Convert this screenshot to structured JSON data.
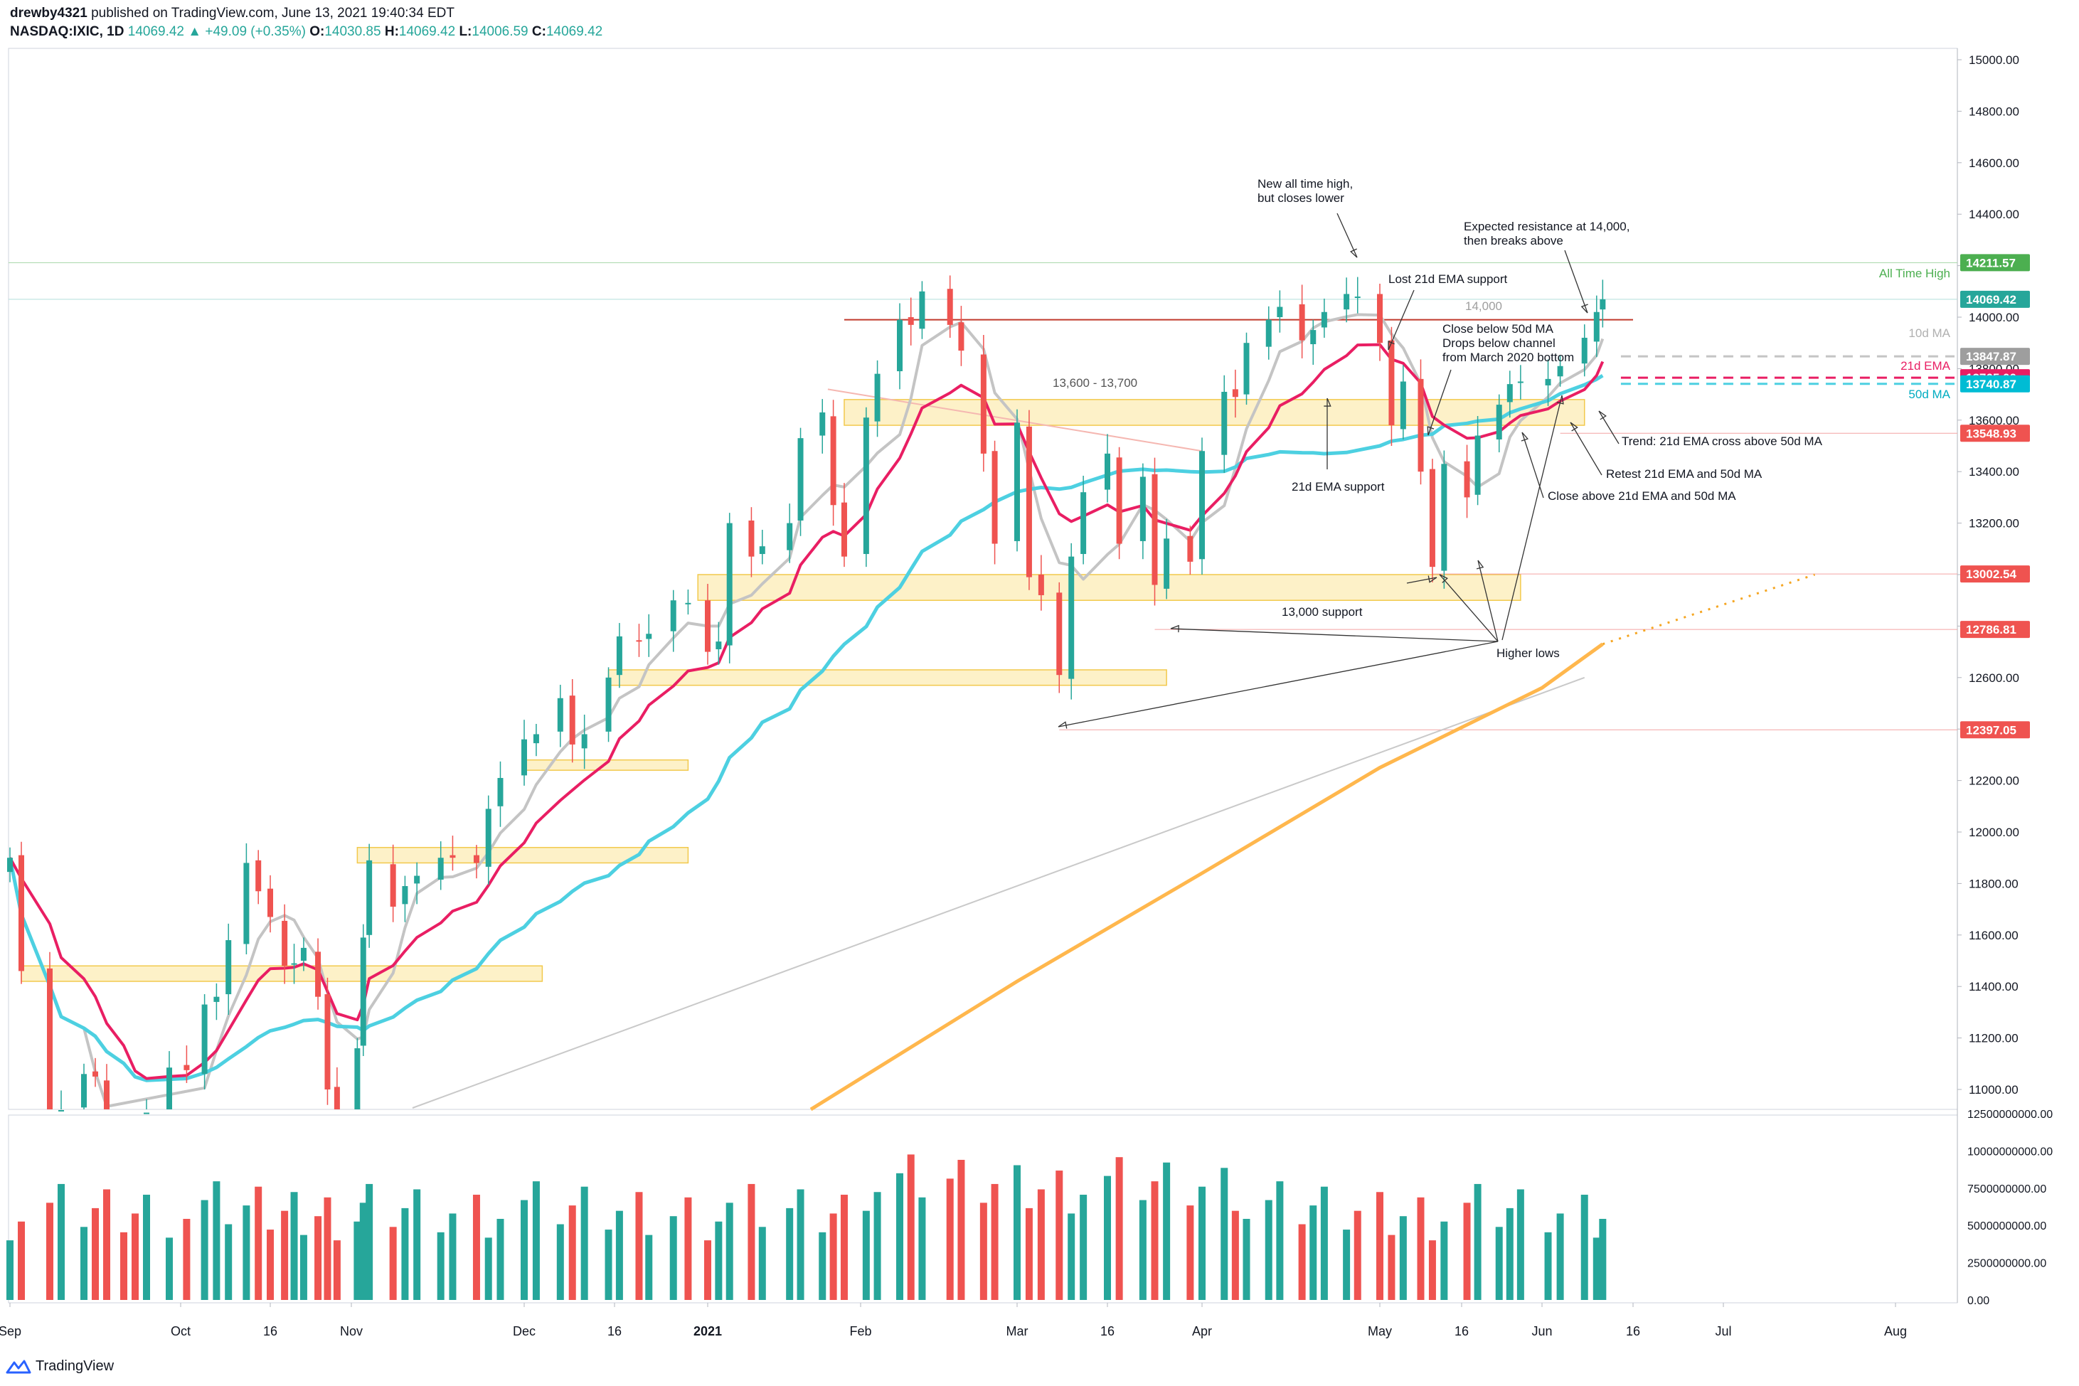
{
  "header": {
    "publisher": "drewby4321",
    "published_text": "published on TradingView.com, June 13, 2021 19:40:34 EDT",
    "symbol": "NASDAQ:IXIC, 1D",
    "last": "14069.42",
    "change": "▲ +49.09 (+0.35%)",
    "o_label": "O:",
    "o": "14030.85",
    "h_label": "H:",
    "h": "14069.42",
    "l_label": "L:",
    "l": "14006.59",
    "c_label": "C:",
    "c": "14069.42"
  },
  "footer": {
    "brand": "TradingView",
    "logo_icon": "tradingview-logo-icon"
  },
  "colors": {
    "up": "#26a69a",
    "down": "#ef5350",
    "ema21": "#e91e63",
    "ma50": "#4dd0e1",
    "ma10": "#c4c4c4",
    "ma200": "#ffb74d",
    "zone": "#fbe59a",
    "ath": "#4caf50"
  },
  "chart_data": {
    "type": "candlestick",
    "price_axis": {
      "ticks": [
        "15000.00",
        "14800.00",
        "14600.00",
        "14400.00",
        "14200.00",
        "14000.00",
        "13800.00",
        "13600.00",
        "13400.00",
        "13200.00",
        "13000.00",
        "12800.00",
        "12600.00",
        "12400.00",
        "12200.00",
        "12000.00",
        "11800.00",
        "11600.00",
        "11400.00",
        "11200.00",
        "11000.00"
      ],
      "range": [
        10920,
        15060
      ]
    },
    "volume_axis": {
      "ticks": [
        "12500000000.00",
        "10000000000.00",
        "7500000000.00",
        "5000000000.00",
        "2500000000.00",
        "0.00"
      ],
      "range": [
        0,
        12500000000
      ]
    },
    "time_axis": {
      "ticks": [
        {
          "label": "Sep",
          "date": "2020-09-01"
        },
        {
          "label": "Oct",
          "date": "2020-10-01"
        },
        {
          "label": "16",
          "date": "2020-10-16"
        },
        {
          "label": "Nov",
          "date": "2020-11-02"
        },
        {
          "label": "Dec",
          "date": "2020-12-01"
        },
        {
          "label": "16",
          "date": "2020-12-16"
        },
        {
          "label": "2021",
          "date": "2021-01-04",
          "bold": true
        },
        {
          "label": "Feb",
          "date": "2021-02-01"
        },
        {
          "label": "Mar",
          "date": "2021-03-01"
        },
        {
          "label": "16",
          "date": "2021-03-16"
        },
        {
          "label": "Apr",
          "date": "2021-04-01"
        },
        {
          "label": "May",
          "date": "2021-05-03"
        },
        {
          "label": "16",
          "date": "2021-05-17"
        },
        {
          "label": "Jun",
          "date": "2021-06-01"
        },
        {
          "label": "16",
          "date": "2021-06-16"
        },
        {
          "label": "Jul",
          "date": "2021-07-01"
        },
        {
          "label": "Aug",
          "date": "2021-08-02"
        }
      ]
    },
    "closes": [
      {
        "date": "2020-09-01",
        "close": 11900
      },
      {
        "date": "2020-09-03",
        "close": 11460
      },
      {
        "date": "2020-09-08",
        "close": 10850
      },
      {
        "date": "2020-09-10",
        "close": 10920
      },
      {
        "date": "2020-09-14",
        "close": 11060
      },
      {
        "date": "2020-09-16",
        "close": 11050
      },
      {
        "date": "2020-09-18",
        "close": 10790
      },
      {
        "date": "2020-09-21",
        "close": 10780
      },
      {
        "date": "2020-09-23",
        "close": 10630
      },
      {
        "date": "2020-09-25",
        "close": 10910
      },
      {
        "date": "2020-09-29",
        "close": 11085
      },
      {
        "date": "2020-10-02",
        "close": 11075
      },
      {
        "date": "2020-10-05",
        "close": 11330
      },
      {
        "date": "2020-10-07",
        "close": 11360
      },
      {
        "date": "2020-10-09",
        "close": 11580
      },
      {
        "date": "2020-10-12",
        "close": 11880
      },
      {
        "date": "2020-10-14",
        "close": 11770
      },
      {
        "date": "2020-10-16",
        "close": 11670
      },
      {
        "date": "2020-10-19",
        "close": 11480
      },
      {
        "date": "2020-10-21",
        "close": 11490
      },
      {
        "date": "2020-10-23",
        "close": 11550
      },
      {
        "date": "2020-10-26",
        "close": 11360
      },
      {
        "date": "2020-10-28",
        "close": 11000
      },
      {
        "date": "2020-10-30",
        "close": 10910
      },
      {
        "date": "2020-11-03",
        "close": 11160
      },
      {
        "date": "2020-11-04",
        "close": 11590
      },
      {
        "date": "2020-11-05",
        "close": 11890
      },
      {
        "date": "2020-11-09",
        "close": 11710
      },
      {
        "date": "2020-11-11",
        "close": 11790
      },
      {
        "date": "2020-11-13",
        "close": 11830
      },
      {
        "date": "2020-11-17",
        "close": 11900
      },
      {
        "date": "2020-11-19",
        "close": 11900
      },
      {
        "date": "2020-11-23",
        "close": 11880
      },
      {
        "date": "2020-11-25",
        "close": 12090
      },
      {
        "date": "2020-11-27",
        "close": 12210
      },
      {
        "date": "2020-12-01",
        "close": 12360
      },
      {
        "date": "2020-12-03",
        "close": 12380
      },
      {
        "date": "2020-12-07",
        "close": 12520
      },
      {
        "date": "2020-12-09",
        "close": 12340
      },
      {
        "date": "2020-12-11",
        "close": 12380
      },
      {
        "date": "2020-12-15",
        "close": 12600
      },
      {
        "date": "2020-12-17",
        "close": 12760
      },
      {
        "date": "2020-12-21",
        "close": 12740
      },
      {
        "date": "2020-12-23",
        "close": 12770
      },
      {
        "date": "2020-12-28",
        "close": 12900
      },
      {
        "date": "2020-12-31",
        "close": 12890
      },
      {
        "date": "2021-01-04",
        "close": 12700
      },
      {
        "date": "2021-01-06",
        "close": 12740
      },
      {
        "date": "2021-01-08",
        "close": 13200
      },
      {
        "date": "2021-01-12",
        "close": 13070
      },
      {
        "date": "2021-01-14",
        "close": 13110
      },
      {
        "date": "2021-01-19",
        "close": 13200
      },
      {
        "date": "2021-01-21",
        "close": 13530
      },
      {
        "date": "2021-01-25",
        "close": 13630
      },
      {
        "date": "2021-01-27",
        "close": 13270
      },
      {
        "date": "2021-01-29",
        "close": 13070
      },
      {
        "date": "2021-02-02",
        "close": 13610
      },
      {
        "date": "2021-02-04",
        "close": 13780
      },
      {
        "date": "2021-02-08",
        "close": 13990
      },
      {
        "date": "2021-02-10",
        "close": 13970
      },
      {
        "date": "2021-02-12",
        "close": 14100
      },
      {
        "date": "2021-02-17",
        "close": 13970
      },
      {
        "date": "2021-02-19",
        "close": 13870
      },
      {
        "date": "2021-02-23",
        "close": 13470
      },
      {
        "date": "2021-02-25",
        "close": 13120
      },
      {
        "date": "2021-03-01",
        "close": 13590
      },
      {
        "date": "2021-03-03",
        "close": 12990
      },
      {
        "date": "2021-03-05",
        "close": 12920
      },
      {
        "date": "2021-03-08",
        "close": 12610
      },
      {
        "date": "2021-03-10",
        "close": 13070
      },
      {
        "date": "2021-03-12",
        "close": 13320
      },
      {
        "date": "2021-03-16",
        "close": 13470
      },
      {
        "date": "2021-03-18",
        "close": 13120
      },
      {
        "date": "2021-03-22",
        "close": 13380
      },
      {
        "date": "2021-03-24",
        "close": 12960
      },
      {
        "date": "2021-03-26",
        "close": 13140
      },
      {
        "date": "2021-03-30",
        "close": 13050
      },
      {
        "date": "2021-04-01",
        "close": 13480
      },
      {
        "date": "2021-04-05",
        "close": 13710
      },
      {
        "date": "2021-04-07",
        "close": 13690
      },
      {
        "date": "2021-04-09",
        "close": 13900
      },
      {
        "date": "2021-04-13",
        "close": 13990
      },
      {
        "date": "2021-04-15",
        "close": 14040
      },
      {
        "date": "2021-04-19",
        "close": 13910
      },
      {
        "date": "2021-04-21",
        "close": 13950
      },
      {
        "date": "2021-04-23",
        "close": 14020
      },
      {
        "date": "2021-04-27",
        "close": 14090
      },
      {
        "date": "2021-04-29",
        "close": 14080
      },
      {
        "date": "2021-05-03",
        "close": 13900
      },
      {
        "date": "2021-05-05",
        "close": 13580
      },
      {
        "date": "2021-05-07",
        "close": 13750
      },
      {
        "date": "2021-05-10",
        "close": 13400
      },
      {
        "date": "2021-05-12",
        "close": 13030
      },
      {
        "date": "2021-05-14",
        "close": 13430
      },
      {
        "date": "2021-05-18",
        "close": 13300
      },
      {
        "date": "2021-05-20",
        "close": 13540
      },
      {
        "date": "2021-05-24",
        "close": 13660
      },
      {
        "date": "2021-05-26",
        "close": 13740
      },
      {
        "date": "2021-05-28",
        "close": 13750
      },
      {
        "date": "2021-06-02",
        "close": 13760
      },
      {
        "date": "2021-06-04",
        "close": 13810
      },
      {
        "date": "2021-06-08",
        "close": 13920
      },
      {
        "date": "2021-06-10",
        "close": 14020
      },
      {
        "date": "2021-06-11",
        "close": 14069.42
      }
    ],
    "indicators": [
      {
        "name": "10d MA",
        "last": "13847.87",
        "color": "#c4c4c4"
      },
      {
        "name": "21d EMA",
        "last": "13765.00",
        "color": "#e91e63"
      },
      {
        "name": "50d MA",
        "last": "13740.87",
        "color": "#4dd0e1"
      }
    ],
    "price_labels": [
      {
        "value": "14211.57",
        "color": "#4caf50",
        "note": "All Time High"
      },
      {
        "value": "14069.42",
        "color": "#26a69a"
      },
      {
        "value": "13847.87",
        "color": "#9e9e9e"
      },
      {
        "value": "13765.00",
        "color": "#e91e63"
      },
      {
        "value": "13740.87",
        "color": "#00bcd4"
      },
      {
        "value": "13548.93",
        "color": "#ef5350"
      },
      {
        "value": "13002.54",
        "color": "#ef5350"
      },
      {
        "value": "12786.81",
        "color": "#ef5350"
      },
      {
        "value": "12397.05",
        "color": "#ef5350"
      }
    ],
    "annotations": [
      "New all time high,\nbut closes lower",
      "Expected resistance at 14,000,\nthen breaks above",
      "Lost 21d EMA support",
      "14,000",
      "Close below 50d MA\nDrops below channel\nfrom March 2020 bottom",
      "13,600 - 13,700",
      "21d EMA support",
      "Trend: 21d EMA cross above 50d MA",
      "Retest 21d EMA and 50d MA",
      "Close above 21d EMA and 50d MA",
      "13,000 support",
      "Higher lows"
    ]
  }
}
